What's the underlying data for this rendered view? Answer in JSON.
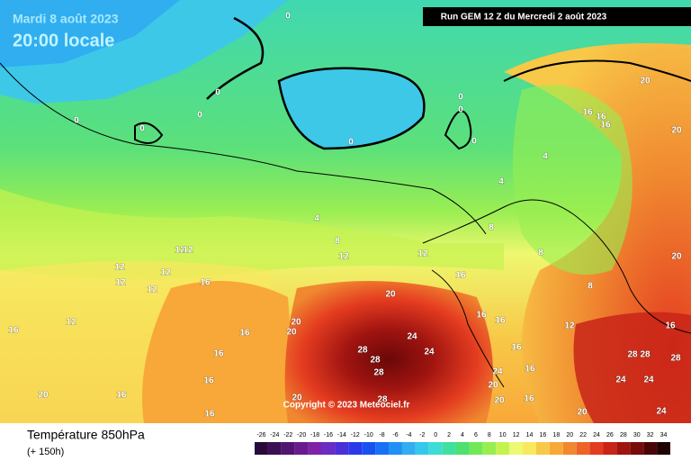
{
  "header": {
    "date": "Mardi 8 août 2023",
    "time": "20:00 locale",
    "run": "Run GEM 12 Z du Mercredi 2 août 2023",
    "copyright": "Copyright © 2023 Meteociel.fr"
  },
  "footer": {
    "title": "Température 850hPa",
    "lead": "(+ 150h)"
  },
  "scale": [
    {
      "value": -26,
      "color": "#2a0a3a"
    },
    {
      "value": -24,
      "color": "#3c0f55"
    },
    {
      "value": -22,
      "color": "#521472"
    },
    {
      "value": -20,
      "color": "#6a1a8e"
    },
    {
      "value": -18,
      "color": "#7e22a8"
    },
    {
      "value": -16,
      "color": "#6a2cc4"
    },
    {
      "value": -14,
      "color": "#4a30d8"
    },
    {
      "value": -12,
      "color": "#2a3ae8"
    },
    {
      "value": -10,
      "color": "#1a50f0"
    },
    {
      "value": -8,
      "color": "#1a70f4"
    },
    {
      "value": -6,
      "color": "#2090f4"
    },
    {
      "value": -4,
      "color": "#30aef0"
    },
    {
      "value": -2,
      "color": "#36c8ec"
    },
    {
      "value": 0,
      "color": "#3edcd4"
    },
    {
      "value": 2,
      "color": "#40e0a0"
    },
    {
      "value": 4,
      "color": "#4ee070"
    },
    {
      "value": 6,
      "color": "#70e858"
    },
    {
      "value": 8,
      "color": "#98ee50"
    },
    {
      "value": 10,
      "color": "#c4f250"
    },
    {
      "value": 12,
      "color": "#eef870"
    },
    {
      "value": 14,
      "color": "#f8e860"
    },
    {
      "value": 16,
      "color": "#f8c848"
    },
    {
      "value": 18,
      "color": "#f8a838"
    },
    {
      "value": 20,
      "color": "#f08830"
    },
    {
      "value": 22,
      "color": "#ec6428"
    },
    {
      "value": 24,
      "color": "#e43c20"
    },
    {
      "value": 26,
      "color": "#c82418"
    },
    {
      "value": 28,
      "color": "#a01410"
    },
    {
      "value": 30,
      "color": "#780c0c"
    },
    {
      "value": 32,
      "color": "#4a0606"
    },
    {
      "value": 34,
      "color": "#200202"
    }
  ],
  "contour_labels": [
    0,
    0,
    0,
    0,
    0,
    0,
    0,
    0,
    0,
    20,
    16,
    16,
    16,
    20,
    4,
    4,
    4,
    8,
    12,
    12,
    8,
    8,
    8,
    20,
    12,
    12,
    12,
    12,
    12,
    12,
    16,
    16,
    20,
    16,
    16,
    12,
    16,
    16,
    12,
    20,
    20,
    16,
    24,
    24,
    28,
    28,
    28,
    16,
    16,
    28,
    28,
    28,
    16,
    16,
    24,
    24,
    24,
    20,
    16,
    20,
    28,
    20,
    20,
    16,
    20,
    24,
    16
  ]
}
